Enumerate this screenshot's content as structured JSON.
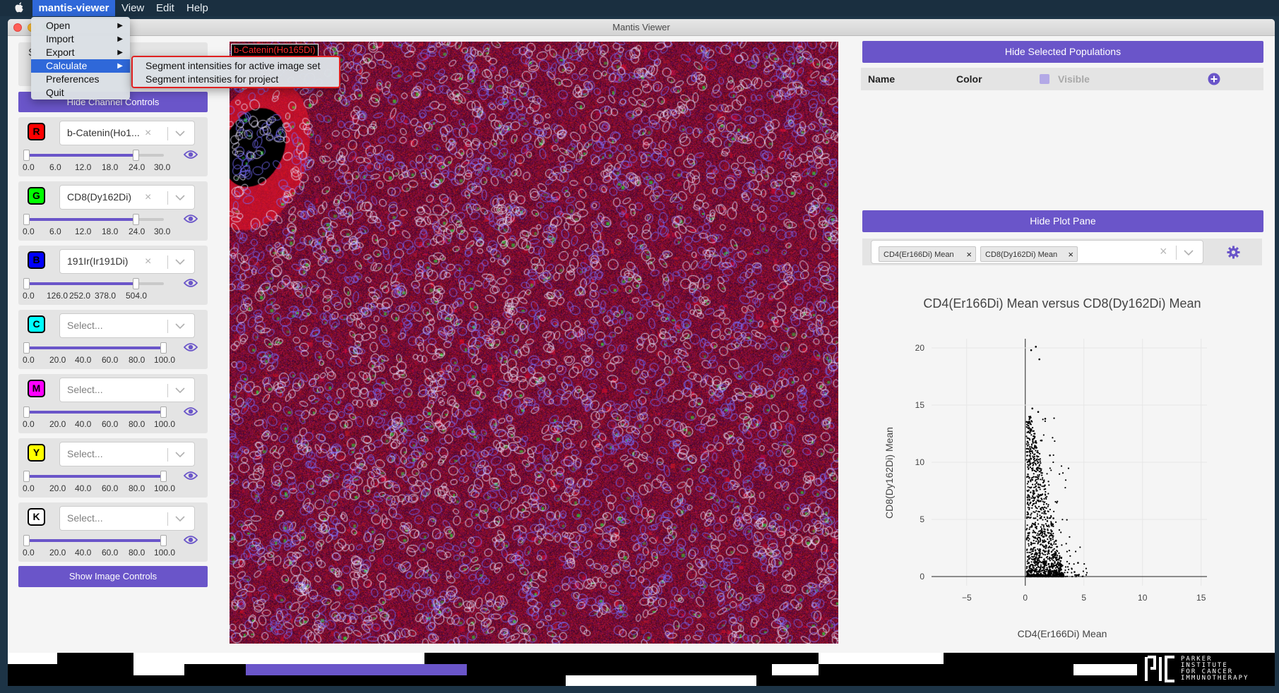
{
  "menubar": {
    "app_name": "mantis-viewer",
    "items": [
      "View",
      "Edit",
      "Help"
    ]
  },
  "window": {
    "title": "Mantis Viewer"
  },
  "app_menu": {
    "items": [
      {
        "label": "Open",
        "has_submenu": true
      },
      {
        "label": "Import",
        "has_submenu": true
      },
      {
        "label": "Export",
        "has_submenu": true
      },
      {
        "label": "Calculate",
        "has_submenu": true,
        "active": true
      },
      {
        "label": "Preferences",
        "has_submenu": false
      },
      {
        "label": "Quit",
        "has_submenu": false
      }
    ],
    "submenu_arrow": "▶"
  },
  "calculate_submenu": {
    "items": [
      "Segment intensities for active image set",
      "Segment intensities for project"
    ]
  },
  "left_panel": {
    "partial_label": "S",
    "hide_channel_controls": "Hide Channel Controls",
    "show_image_controls": "Show Image Controls",
    "clear_glyph": "×",
    "channels": [
      {
        "letter": "R",
        "color": "#ff0000",
        "selected": "b-Catenin(Ho1...",
        "placeholder": false,
        "ticks": [
          "0.0",
          "6.0",
          "12.0",
          "18.0",
          "24.0",
          "30.0"
        ],
        "range": [
          0,
          0.8
        ]
      },
      {
        "letter": "G",
        "color": "#00ff00",
        "selected": "CD8(Dy162Di)",
        "placeholder": false,
        "ticks": [
          "0.0",
          "6.0",
          "12.0",
          "18.0",
          "24.0",
          "30.0"
        ],
        "range": [
          0,
          0.8
        ]
      },
      {
        "letter": "B",
        "color": "#0000ff",
        "selected": "191Ir(Ir191Di)",
        "placeholder": false,
        "ticks": [
          "0.0",
          "126.0",
          "252.0",
          "378.0",
          "504.0"
        ],
        "range": [
          0,
          0.8
        ]
      },
      {
        "letter": "C",
        "color": "#00ffff",
        "selected": "Select...",
        "placeholder": true,
        "ticks": [
          "0.0",
          "20.0",
          "40.0",
          "60.0",
          "80.0",
          "100.0"
        ],
        "range": [
          0,
          1
        ]
      },
      {
        "letter": "M",
        "color": "#ff00ff",
        "selected": "Select...",
        "placeholder": true,
        "ticks": [
          "0.0",
          "20.0",
          "40.0",
          "60.0",
          "80.0",
          "100.0"
        ],
        "range": [
          0,
          1
        ]
      },
      {
        "letter": "Y",
        "color": "#ffff00",
        "selected": "Select...",
        "placeholder": true,
        "ticks": [
          "0.0",
          "20.0",
          "40.0",
          "60.0",
          "80.0",
          "100.0"
        ],
        "range": [
          0,
          1
        ]
      },
      {
        "letter": "K",
        "color": "#ffffff",
        "selected": "Select...",
        "placeholder": true,
        "ticks": [
          "0.0",
          "20.0",
          "40.0",
          "60.0",
          "80.0",
          "100.0"
        ],
        "range": [
          0,
          1
        ]
      }
    ]
  },
  "image": {
    "channel_label": "b-Catenin(Ho165Di)"
  },
  "populations": {
    "hide_button": "Hide Selected Populations",
    "columns": {
      "name": "Name",
      "color": "Color",
      "visible": "Visible"
    }
  },
  "plot_pane": {
    "hide_button": "Hide Plot Pane",
    "selected_markers": [
      "CD4(Er166Di) Mean",
      "CD8(Dy162Di) Mean"
    ],
    "tag_close": "×",
    "clear_glyph": "×"
  },
  "chart_data": {
    "type": "scatter",
    "title": "CD4(Er166Di) Mean versus CD8(Dy162Di) Mean",
    "xlabel": "CD4(Er166Di) Mean",
    "ylabel": "CD8(Dy162Di) Mean",
    "xlim": [
      -8,
      15.5
    ],
    "ylim": [
      -0.8,
      20.8
    ],
    "x_ticks": [
      -5,
      0,
      5,
      10,
      15
    ],
    "x_tick_labels": [
      "−5",
      "0",
      "5",
      "10",
      "15"
    ],
    "y_ticks": [
      0,
      5,
      10,
      15,
      20
    ],
    "y_tick_labels": [
      "0",
      "5",
      "10",
      "15",
      "20"
    ],
    "grid": true,
    "points_description_marks": "dense cluster near x 0-3, y 0-15",
    "sample_points": {
      "x": [
        0.5,
        0.9,
        1.2,
        0.6,
        1.1,
        1.7,
        0.8,
        1.4,
        2.1,
        0.4,
        1.0,
        1.6,
        0.7,
        1.3,
        2.4,
        0.9,
        1.8,
        0.5,
        1.2,
        2.0,
        3.1,
        4.2,
        4.5,
        0.3,
        0.6
      ],
      "y": [
        19.8,
        20.1,
        19.0,
        14.7,
        14.4,
        13.8,
        12.5,
        11.9,
        10.6,
        9.8,
        8.7,
        7.9,
        7.2,
        6.6,
        5.1,
        4.3,
        3.6,
        2.8,
        1.7,
        1.1,
        0.9,
        0.4,
        1.2,
        0.2,
        0.1
      ]
    },
    "point_color": "#000000"
  },
  "footer": {
    "logo_text_lines": [
      "PARKER",
      "INSTITUTE",
      "FOR CANCER",
      "IMMUNOTHERAPY"
    ]
  }
}
